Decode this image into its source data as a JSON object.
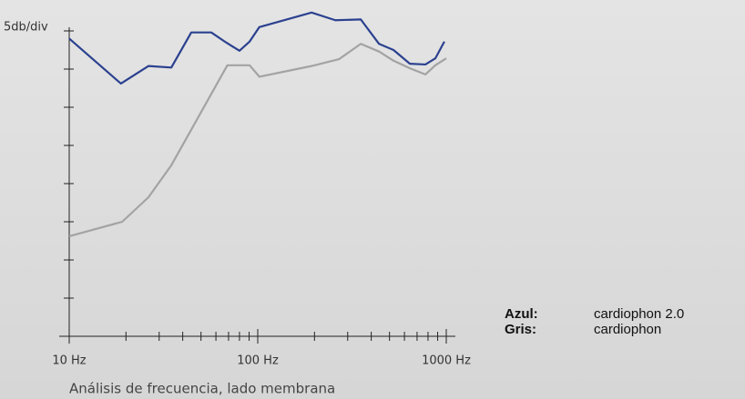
{
  "chart_data": {
    "type": "line",
    "ylabel": "5db/div",
    "xlabel": "Análisis de frecuencia, lado membrana",
    "xscale": "log",
    "xlim": [
      10,
      1000
    ],
    "xticks": [
      {
        "value": 10,
        "label": "10 Hz"
      },
      {
        "value": 100,
        "label": "100 Hz"
      },
      {
        "value": 1000,
        "label": "1000 Hz"
      }
    ],
    "xminor_ticks": [
      20,
      30,
      40,
      50,
      60,
      70,
      80,
      90,
      200,
      300,
      400,
      500,
      600,
      700,
      800,
      900
    ],
    "ylim": [
      0,
      45
    ],
    "yticks": [
      0,
      5,
      10,
      15,
      20,
      25,
      30,
      35,
      40
    ],
    "legend_keys": [
      "Azul:",
      "Gris:"
    ],
    "series": [
      {
        "name": "cardiophon 2.0",
        "color": "#2b418f",
        "x": [
          10,
          18.8,
          26.3,
          34.8,
          44.4,
          56.7,
          67.8,
          80,
          90.5,
          102,
          193,
          258,
          352,
          440,
          525,
          641,
          775,
          875,
          977
        ],
        "values": [
          39.0,
          33.1,
          35.4,
          35.2,
          39.8,
          39.8,
          38.5,
          37.4,
          38.6,
          40.5,
          42.4,
          41.4,
          41.5,
          38.3,
          37.5,
          35.7,
          35.6,
          36.4,
          38.6
        ]
      },
      {
        "name": "cardiophon",
        "color": "#a3a3a3",
        "x": [
          10,
          19.1,
          26.3,
          34.8,
          69,
          90.5,
          102,
          193,
          270,
          352,
          440,
          525,
          641,
          775,
          875,
          1000
        ],
        "values": [
          13.1,
          15.0,
          18.2,
          22.4,
          35.5,
          35.5,
          34.0,
          35.4,
          36.3,
          38.3,
          37.3,
          36.1,
          35.1,
          34.3,
          35.5,
          36.4
        ]
      }
    ]
  }
}
